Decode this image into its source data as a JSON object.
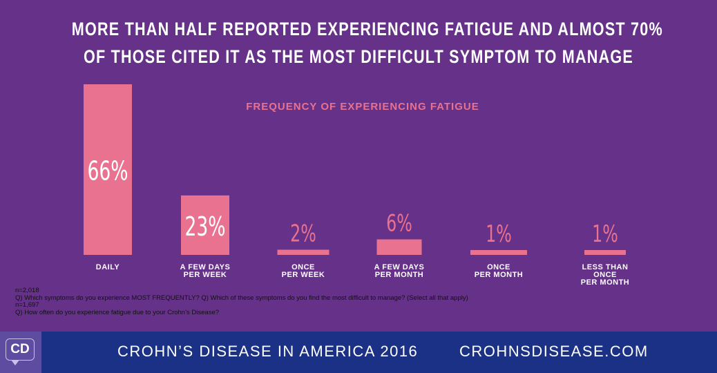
{
  "title_lines": [
    "More than half reported experiencing fatigue and almost 70%",
    "of those cited it as the most difficult symptom to manage"
  ],
  "chart_data": {
    "type": "bar",
    "title": "FREQUENCY OF EXPERIENCING FATIGUE",
    "categories": [
      [
        "DAILY"
      ],
      [
        "A FEW DAYS",
        "PER WEEK"
      ],
      [
        "ONCE",
        "PER WEEK"
      ],
      [
        "A FEW DAYS",
        "PER MONTH"
      ],
      [
        "ONCE",
        "PER MONTH"
      ],
      [
        "LESS THAN",
        "ONCE",
        "PER MONTH"
      ]
    ],
    "values": [
      66,
      23,
      2,
      6,
      1,
      1
    ],
    "value_labels": [
      "66%",
      "23%",
      "2%",
      "6%",
      "1%",
      "1%"
    ],
    "ylim": [
      0,
      66
    ],
    "grid": false,
    "bar_color": "#e8728f"
  },
  "notes": [
    "n=2,018",
    "Q) Which symptoms do you experience MOST FREQUENTLY? Q) Which of these symptoms do you find the most difficult to manage? (Select all that apply)",
    "n=1,697",
    "Q) How often do you experience fatigue due to your Crohn’s Disease?"
  ],
  "footer": {
    "logo": "CD",
    "left_text": "CROHN’S DISEASE IN AMERICA 2016",
    "right_text": "CROHNSDISEASE.COM"
  }
}
